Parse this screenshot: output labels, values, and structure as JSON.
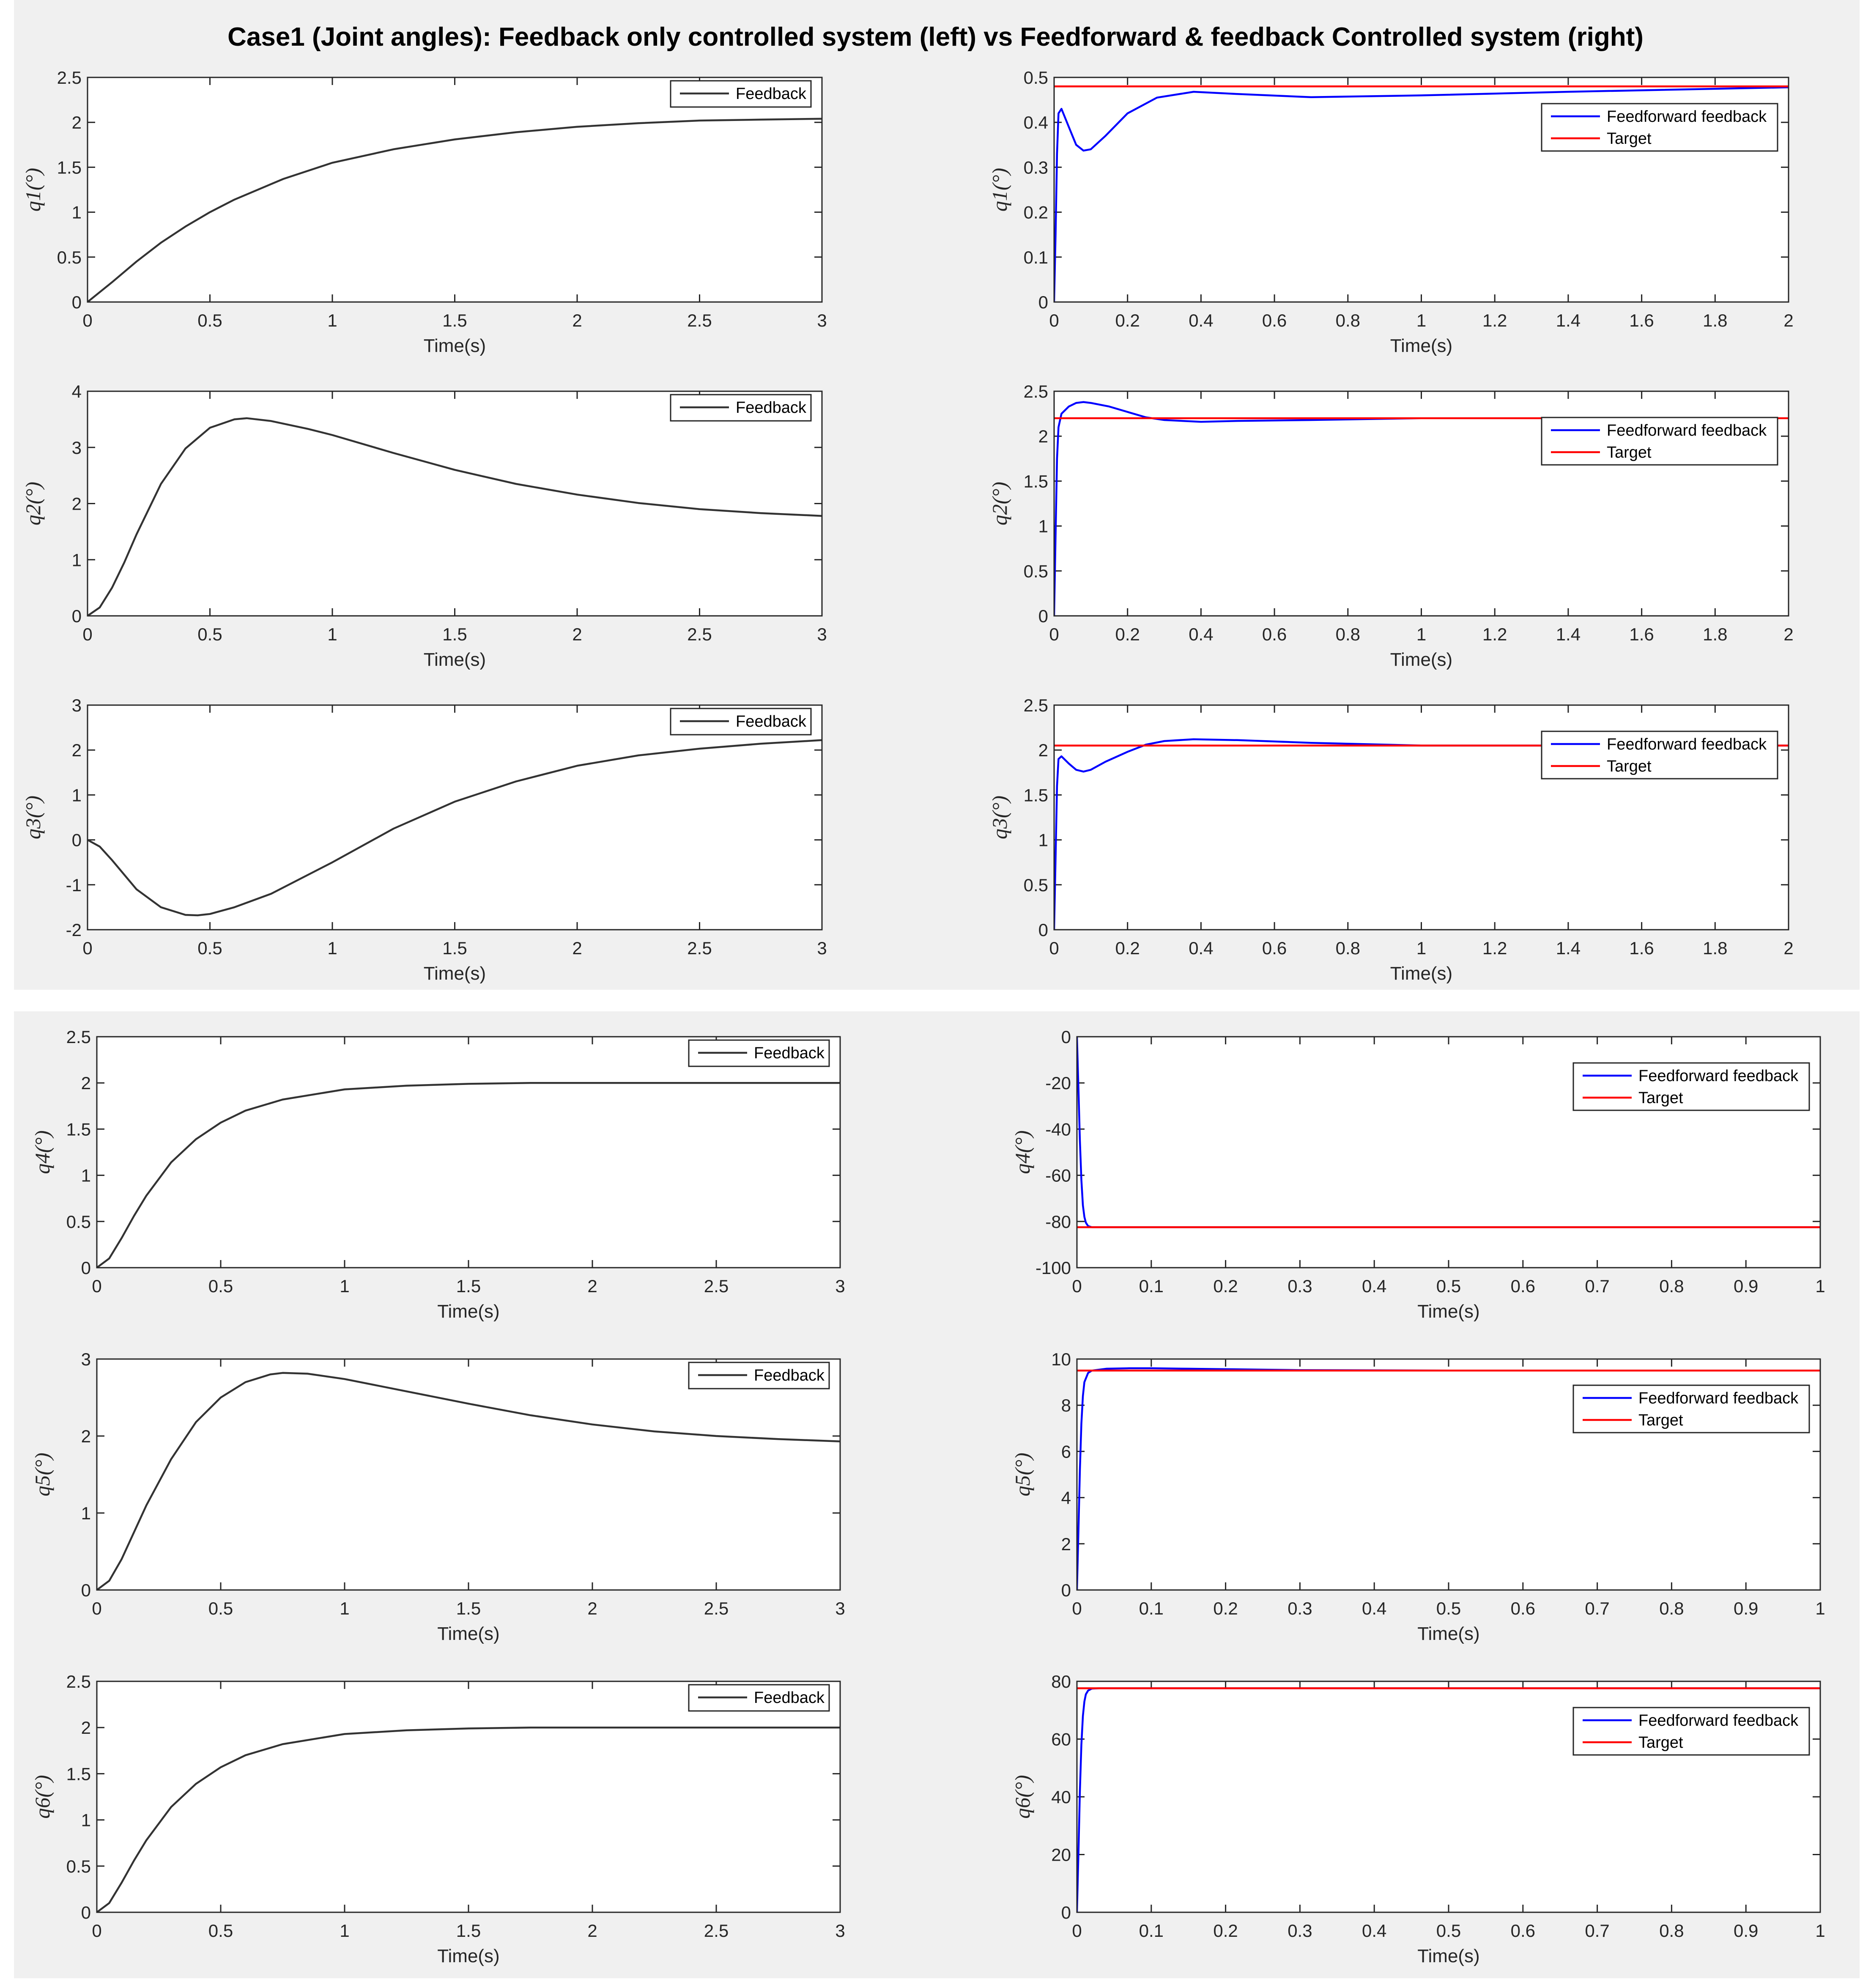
{
  "title": "Case1 (Joint angles): Feedback only controlled system (left) vs Feedforward & feedback Controlled system (right)",
  "colors": {
    "feedback": "#333333",
    "feedforward": "#0000ff",
    "target": "#ff0000",
    "panel": "#f0f0f0"
  },
  "chart_data": [
    {
      "type": "line",
      "xlabel": "Time(s)",
      "ylabel": "q1(°)",
      "xlim": [
        0,
        3
      ],
      "ylim": [
        0,
        2.5
      ],
      "xticks": [
        0,
        0.5,
        1,
        1.5,
        2,
        2.5,
        3
      ],
      "xticklabels": [
        "0",
        "0.5",
        "1",
        "1.5",
        "2",
        "2.5",
        "3"
      ],
      "yticks": [
        0,
        0.5,
        1,
        1.5,
        2,
        2.5
      ],
      "yticklabels": [
        "0",
        "0.5",
        "1",
        "1.5",
        "2",
        "2.5"
      ],
      "legend_position": "top-right",
      "series": [
        {
          "name": "Feedback",
          "color": "#333333",
          "x": [
            0,
            0.1,
            0.2,
            0.3,
            0.4,
            0.5,
            0.6,
            0.8,
            1.0,
            1.25,
            1.5,
            1.75,
            2.0,
            2.25,
            2.5,
            2.75,
            3.0
          ],
          "y": [
            0,
            0.22,
            0.45,
            0.66,
            0.84,
            1.0,
            1.14,
            1.37,
            1.55,
            1.7,
            1.81,
            1.89,
            1.95,
            1.99,
            2.02,
            2.03,
            2.04
          ]
        }
      ]
    },
    {
      "type": "line",
      "xlabel": "Time(s)",
      "ylabel": "q1(°)",
      "xlim": [
        0,
        2
      ],
      "ylim": [
        0,
        0.5
      ],
      "xticks": [
        0,
        0.2,
        0.4,
        0.6,
        0.8,
        1,
        1.2,
        1.4,
        1.6,
        1.8,
        2
      ],
      "xticklabels": [
        "0",
        "0.2",
        "0.4",
        "0.6",
        "0.8",
        "1",
        "1.2",
        "1.4",
        "1.6",
        "1.8",
        "2"
      ],
      "yticks": [
        0,
        0.1,
        0.2,
        0.3,
        0.4,
        0.5
      ],
      "yticklabels": [
        "0",
        "0.1",
        "0.2",
        "0.3",
        "0.4",
        "0.5"
      ],
      "legend_position": "top-right",
      "series": [
        {
          "name": "Feedforward feedback",
          "color": "#0000ff",
          "x": [
            0,
            0.004,
            0.008,
            0.012,
            0.02,
            0.04,
            0.06,
            0.08,
            0.1,
            0.14,
            0.2,
            0.28,
            0.38,
            0.5,
            0.7,
            1.0,
            1.4,
            2.0
          ],
          "y": [
            0,
            0.15,
            0.33,
            0.42,
            0.43,
            0.39,
            0.35,
            0.337,
            0.34,
            0.37,
            0.42,
            0.455,
            0.468,
            0.463,
            0.456,
            0.46,
            0.468,
            0.478
          ]
        },
        {
          "name": "Target",
          "color": "#ff0000",
          "x": [
            0,
            2
          ],
          "y": [
            0.48,
            0.48
          ]
        }
      ]
    },
    {
      "type": "line",
      "xlabel": "Time(s)",
      "ylabel": "q2(°)",
      "xlim": [
        0,
        3
      ],
      "ylim": [
        0,
        4
      ],
      "xticks": [
        0,
        0.5,
        1,
        1.5,
        2,
        2.5,
        3
      ],
      "xticklabels": [
        "0",
        "0.5",
        "1",
        "1.5",
        "2",
        "2.5",
        "3"
      ],
      "yticks": [
        0,
        1,
        2,
        3,
        4
      ],
      "yticklabels": [
        "0",
        "1",
        "2",
        "3",
        "4"
      ],
      "legend_position": "top-right",
      "series": [
        {
          "name": "Feedback",
          "color": "#333333",
          "x": [
            0,
            0.05,
            0.1,
            0.15,
            0.2,
            0.3,
            0.4,
            0.5,
            0.6,
            0.65,
            0.75,
            0.9,
            1.0,
            1.25,
            1.5,
            1.75,
            2.0,
            2.25,
            2.5,
            2.75,
            3.0
          ],
          "y": [
            0,
            0.15,
            0.5,
            0.95,
            1.45,
            2.35,
            2.98,
            3.35,
            3.5,
            3.52,
            3.47,
            3.33,
            3.22,
            2.9,
            2.6,
            2.35,
            2.16,
            2.01,
            1.9,
            1.83,
            1.78
          ]
        }
      ]
    },
    {
      "type": "line",
      "xlabel": "Time(s)",
      "ylabel": "q2(°)",
      "xlim": [
        0,
        2
      ],
      "ylim": [
        0,
        2.5
      ],
      "xticks": [
        0,
        0.2,
        0.4,
        0.6,
        0.8,
        1,
        1.2,
        1.4,
        1.6,
        1.8,
        2
      ],
      "xticklabels": [
        "0",
        "0.2",
        "0.4",
        "0.6",
        "0.8",
        "1",
        "1.2",
        "1.4",
        "1.6",
        "1.8",
        "2"
      ],
      "yticks": [
        0,
        0.5,
        1,
        1.5,
        2,
        2.5
      ],
      "yticklabels": [
        "0",
        "0.5",
        "1",
        "1.5",
        "2",
        "2.5"
      ],
      "legend_position": "top-right",
      "series": [
        {
          "name": "Feedforward feedback",
          "color": "#0000ff",
          "x": [
            0,
            0.004,
            0.008,
            0.012,
            0.02,
            0.04,
            0.06,
            0.08,
            0.1,
            0.15,
            0.2,
            0.25,
            0.3,
            0.4,
            0.5,
            0.7,
            1.0,
            1.4,
            2.0
          ],
          "y": [
            0,
            0.9,
            1.75,
            2.1,
            2.25,
            2.33,
            2.37,
            2.38,
            2.37,
            2.33,
            2.27,
            2.21,
            2.18,
            2.16,
            2.17,
            2.18,
            2.2,
            2.2,
            2.2
          ]
        },
        {
          "name": "Target",
          "color": "#ff0000",
          "x": [
            0,
            2
          ],
          "y": [
            2.2,
            2.2
          ]
        }
      ]
    },
    {
      "type": "line",
      "xlabel": "Time(s)",
      "ylabel": "q3(°)",
      "xlim": [
        0,
        3
      ],
      "ylim": [
        -2,
        3
      ],
      "xticks": [
        0,
        0.5,
        1,
        1.5,
        2,
        2.5,
        3
      ],
      "xticklabels": [
        "0",
        "0.5",
        "1",
        "1.5",
        "2",
        "2.5",
        "3"
      ],
      "yticks": [
        -2,
        -1,
        0,
        1,
        2,
        3
      ],
      "yticklabels": [
        "-2",
        "-1",
        "0",
        "1",
        "2",
        "3"
      ],
      "legend_position": "top-right",
      "series": [
        {
          "name": "Feedback",
          "color": "#333333",
          "x": [
            0,
            0.05,
            0.1,
            0.2,
            0.3,
            0.4,
            0.45,
            0.5,
            0.6,
            0.75,
            1.0,
            1.25,
            1.5,
            1.75,
            2.0,
            2.25,
            2.5,
            2.75,
            3.0
          ],
          "y": [
            0,
            -0.15,
            -0.45,
            -1.1,
            -1.5,
            -1.67,
            -1.68,
            -1.65,
            -1.5,
            -1.2,
            -0.5,
            0.25,
            0.85,
            1.3,
            1.65,
            1.88,
            2.03,
            2.14,
            2.22
          ]
        }
      ]
    },
    {
      "type": "line",
      "xlabel": "Time(s)",
      "ylabel": "q3(°)",
      "xlim": [
        0,
        2
      ],
      "ylim": [
        0,
        2.5
      ],
      "xticks": [
        0,
        0.2,
        0.4,
        0.6,
        0.8,
        1,
        1.2,
        1.4,
        1.6,
        1.8,
        2
      ],
      "xticklabels": [
        "0",
        "0.2",
        "0.4",
        "0.6",
        "0.8",
        "1",
        "1.2",
        "1.4",
        "1.6",
        "1.8",
        "2"
      ],
      "yticks": [
        0,
        0.5,
        1,
        1.5,
        2,
        2.5
      ],
      "yticklabels": [
        "0",
        "0.5",
        "1",
        "1.5",
        "2",
        "2.5"
      ],
      "legend_position": "top-right",
      "series": [
        {
          "name": "Feedforward feedback",
          "color": "#0000ff",
          "x": [
            0,
            0.004,
            0.008,
            0.012,
            0.02,
            0.04,
            0.06,
            0.08,
            0.1,
            0.14,
            0.2,
            0.25,
            0.3,
            0.38,
            0.5,
            0.7,
            1.0,
            1.4,
            2.0
          ],
          "y": [
            0,
            0.8,
            1.6,
            1.9,
            1.93,
            1.85,
            1.78,
            1.76,
            1.78,
            1.87,
            1.98,
            2.06,
            2.1,
            2.12,
            2.11,
            2.08,
            2.05,
            2.05,
            2.05
          ]
        },
        {
          "name": "Target",
          "color": "#ff0000",
          "x": [
            0,
            2
          ],
          "y": [
            2.05,
            2.05
          ]
        }
      ]
    },
    {
      "type": "line",
      "xlabel": "Time(s)",
      "ylabel": "q4(°)",
      "xlim": [
        0,
        3
      ],
      "ylim": [
        0,
        2.5
      ],
      "xticks": [
        0,
        0.5,
        1,
        1.5,
        2,
        2.5,
        3
      ],
      "xticklabels": [
        "0",
        "0.5",
        "1",
        "1.5",
        "2",
        "2.5",
        "3"
      ],
      "yticks": [
        0,
        0.5,
        1,
        1.5,
        2,
        2.5
      ],
      "yticklabels": [
        "0",
        "0.5",
        "1",
        "1.5",
        "2",
        "2.5"
      ],
      "legend_position": "top-right",
      "series": [
        {
          "name": "Feedback",
          "color": "#333333",
          "x": [
            0,
            0.05,
            0.1,
            0.15,
            0.2,
            0.3,
            0.4,
            0.5,
            0.6,
            0.75,
            1.0,
            1.25,
            1.5,
            1.75,
            2.0,
            2.5,
            3.0
          ],
          "y": [
            0,
            0.1,
            0.32,
            0.56,
            0.78,
            1.14,
            1.39,
            1.57,
            1.7,
            1.82,
            1.93,
            1.97,
            1.99,
            2.0,
            2.0,
            2.0,
            2.0
          ]
        }
      ]
    },
    {
      "type": "line",
      "xlabel": "Time(s)",
      "ylabel": "q4(°)",
      "xlim": [
        0,
        1
      ],
      "ylim": [
        -100,
        0
      ],
      "xticks": [
        0,
        0.1,
        0.2,
        0.3,
        0.4,
        0.5,
        0.6,
        0.7,
        0.8,
        0.9,
        1
      ],
      "xticklabels": [
        "0",
        "0.1",
        "0.2",
        "0.3",
        "0.4",
        "0.5",
        "0.6",
        "0.7",
        "0.8",
        "0.9",
        "1"
      ],
      "yticks": [
        -100,
        -80,
        -60,
        -40,
        -20,
        0
      ],
      "yticklabels": [
        "-100",
        "-80",
        "-60",
        "-40",
        "-20",
        "0"
      ],
      "legend_position": "top-right",
      "series": [
        {
          "name": "Feedforward feedback",
          "color": "#0000ff",
          "x": [
            0,
            0.002,
            0.004,
            0.006,
            0.008,
            0.01,
            0.012,
            0.015,
            0.02,
            0.03,
            1.0
          ],
          "y": [
            0,
            -22,
            -45,
            -62,
            -73,
            -78,
            -80.5,
            -82,
            -82.5,
            -82.5,
            -82.5
          ]
        },
        {
          "name": "Target",
          "color": "#ff0000",
          "x": [
            0,
            1
          ],
          "y": [
            -82.5,
            -82.5
          ]
        }
      ]
    },
    {
      "type": "line",
      "xlabel": "Time(s)",
      "ylabel": "q5(°)",
      "xlim": [
        0,
        3
      ],
      "ylim": [
        0,
        3
      ],
      "xticks": [
        0,
        0.5,
        1,
        1.5,
        2,
        2.5,
        3
      ],
      "xticklabels": [
        "0",
        "0.5",
        "1",
        "1.5",
        "2",
        "2.5",
        "3"
      ],
      "yticks": [
        0,
        1,
        2,
        3
      ],
      "yticklabels": [
        "0",
        "1",
        "2",
        "3"
      ],
      "legend_position": "top-right",
      "series": [
        {
          "name": "Feedback",
          "color": "#333333",
          "x": [
            0,
            0.05,
            0.1,
            0.2,
            0.3,
            0.4,
            0.5,
            0.6,
            0.7,
            0.75,
            0.85,
            1.0,
            1.25,
            1.5,
            1.75,
            2.0,
            2.25,
            2.5,
            2.75,
            3.0
          ],
          "y": [
            0,
            0.12,
            0.4,
            1.1,
            1.7,
            2.18,
            2.5,
            2.7,
            2.8,
            2.82,
            2.81,
            2.74,
            2.58,
            2.42,
            2.27,
            2.15,
            2.06,
            2.0,
            1.96,
            1.93
          ]
        }
      ]
    },
    {
      "type": "line",
      "xlabel": "Time(s)",
      "ylabel": "q5(°)",
      "xlim": [
        0,
        1
      ],
      "ylim": [
        0,
        10
      ],
      "xticks": [
        0,
        0.1,
        0.2,
        0.3,
        0.4,
        0.5,
        0.6,
        0.7,
        0.8,
        0.9,
        1
      ],
      "xticklabels": [
        "0",
        "0.1",
        "0.2",
        "0.3",
        "0.4",
        "0.5",
        "0.6",
        "0.7",
        "0.8",
        "0.9",
        "1"
      ],
      "yticks": [
        0,
        2,
        4,
        6,
        8,
        10
      ],
      "yticklabels": [
        "0",
        "2",
        "4",
        "6",
        "8",
        "10"
      ],
      "legend_position": "top-right",
      "series": [
        {
          "name": "Feedforward feedback",
          "color": "#0000ff",
          "x": [
            0,
            0.002,
            0.004,
            0.006,
            0.008,
            0.01,
            0.015,
            0.02,
            0.04,
            0.07,
            0.1,
            0.15,
            0.2,
            0.3,
            0.5,
            1.0
          ],
          "y": [
            0,
            2.5,
            5.2,
            7.2,
            8.4,
            9.0,
            9.4,
            9.5,
            9.58,
            9.6,
            9.6,
            9.58,
            9.56,
            9.52,
            9.5,
            9.5
          ]
        },
        {
          "name": "Target",
          "color": "#ff0000",
          "x": [
            0,
            1
          ],
          "y": [
            9.5,
            9.5
          ]
        }
      ]
    },
    {
      "type": "line",
      "xlabel": "Time(s)",
      "ylabel": "q6(°)",
      "xlim": [
        0,
        3
      ],
      "ylim": [
        0,
        2.5
      ],
      "xticks": [
        0,
        0.5,
        1,
        1.5,
        2,
        2.5,
        3
      ],
      "xticklabels": [
        "0",
        "0.5",
        "1",
        "1.5",
        "2",
        "2.5",
        "3"
      ],
      "yticks": [
        0,
        0.5,
        1,
        1.5,
        2,
        2.5
      ],
      "yticklabels": [
        "0",
        "0.5",
        "1",
        "1.5",
        "2",
        "2.5"
      ],
      "legend_position": "top-right",
      "series": [
        {
          "name": "Feedback",
          "color": "#333333",
          "x": [
            0,
            0.05,
            0.1,
            0.15,
            0.2,
            0.3,
            0.4,
            0.5,
            0.6,
            0.75,
            1.0,
            1.25,
            1.5,
            1.75,
            2.0,
            2.5,
            3.0
          ],
          "y": [
            0,
            0.1,
            0.32,
            0.56,
            0.78,
            1.14,
            1.39,
            1.57,
            1.7,
            1.82,
            1.93,
            1.97,
            1.99,
            2.0,
            2.0,
            2.0,
            2.0
          ]
        }
      ]
    },
    {
      "type": "line",
      "xlabel": "Time(s)",
      "ylabel": "q6(°)",
      "xlim": [
        0,
        1
      ],
      "ylim": [
        0,
        80
      ],
      "xticks": [
        0,
        0.1,
        0.2,
        0.3,
        0.4,
        0.5,
        0.6,
        0.7,
        0.8,
        0.9,
        1
      ],
      "xticklabels": [
        "0",
        "0.1",
        "0.2",
        "0.3",
        "0.4",
        "0.5",
        "0.6",
        "0.7",
        "0.8",
        "0.9",
        "1"
      ],
      "yticks": [
        0,
        20,
        40,
        60,
        80
      ],
      "yticklabels": [
        "0",
        "20",
        "40",
        "60",
        "80"
      ],
      "legend_position": "top-right",
      "series": [
        {
          "name": "Feedforward feedback",
          "color": "#0000ff",
          "x": [
            0,
            0.002,
            0.004,
            0.006,
            0.008,
            0.01,
            0.012,
            0.015,
            0.02,
            0.03,
            1.0
          ],
          "y": [
            0,
            20,
            42,
            58,
            68,
            73,
            75.5,
            76.8,
            77.5,
            77.6,
            77.6
          ]
        },
        {
          "name": "Target",
          "color": "#ff0000",
          "x": [
            0,
            1
          ],
          "y": [
            77.6,
            77.6
          ]
        }
      ]
    }
  ]
}
